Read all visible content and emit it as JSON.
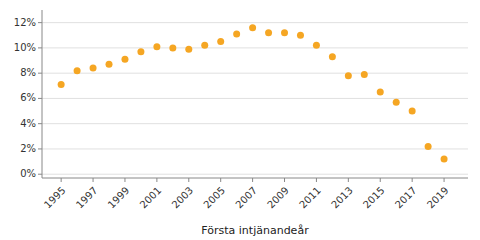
{
  "chart_data": {
    "type": "scatter",
    "xlabel": "Första intjänandeår",
    "x": [
      1995,
      1996,
      1997,
      1998,
      1999,
      2000,
      2001,
      2002,
      2003,
      2004,
      2005,
      2006,
      2007,
      2008,
      2009,
      2010,
      2011,
      2012,
      2013,
      2014,
      2015,
      2016,
      2017,
      2018,
      2019
    ],
    "values": [
      0.071,
      0.082,
      0.084,
      0.087,
      0.091,
      0.097,
      0.101,
      0.1,
      0.099,
      0.102,
      0.105,
      0.111,
      0.116,
      0.112,
      0.112,
      0.11,
      0.102,
      0.093,
      0.078,
      0.079,
      0.065,
      0.057,
      0.05,
      0.022,
      0.012
    ],
    "color": "#F5A623",
    "xlim": [
      1993.8,
      2020.5
    ],
    "xticks": [
      1995,
      1997,
      1999,
      2001,
      2003,
      2005,
      2007,
      2009,
      2011,
      2013,
      2015,
      2017,
      2019
    ],
    "ylim": [
      -0.003,
      0.13
    ],
    "yticks": [
      {
        "value": 0.0,
        "label": "0%"
      },
      {
        "value": 0.02,
        "label": "2%"
      },
      {
        "value": 0.04,
        "label": "4%"
      },
      {
        "value": 0.06,
        "label": "6%"
      },
      {
        "value": 0.08,
        "label": "8%"
      },
      {
        "value": 0.1,
        "label": "10%"
      },
      {
        "value": 0.12,
        "label": "12%"
      }
    ],
    "grid": true
  }
}
